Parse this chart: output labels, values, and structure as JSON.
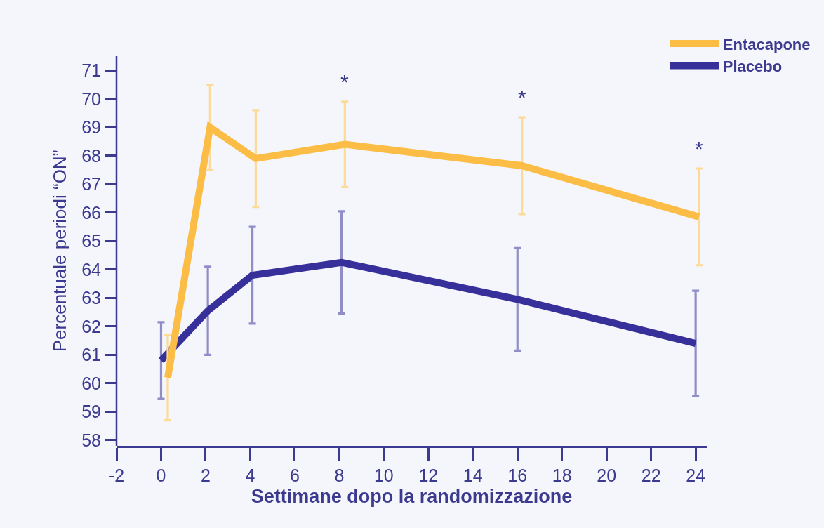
{
  "chart_data": {
    "type": "line",
    "xlabel": "Settimane dopo la randomizzazione",
    "ylabel": "Percentuale periodi “ON”",
    "xlim": [
      -2,
      24.5
    ],
    "xticks": [
      -2,
      0,
      2,
      4,
      6,
      8,
      10,
      12,
      14,
      16,
      18,
      20,
      22,
      24
    ],
    "ylim": [
      57.8,
      71.5
    ],
    "yticks": [
      58,
      59,
      60,
      61,
      62,
      63,
      64,
      65,
      66,
      67,
      68,
      69,
      70,
      71
    ],
    "series": [
      {
        "name": "Entacapone",
        "color": "#fbbd45",
        "x": [
          0.3,
          2.2,
          4.25,
          8.25,
          16.2,
          24.15
        ],
        "values": [
          60.2,
          69.0,
          67.9,
          68.4,
          67.65,
          65.85
        ],
        "errors": [
          1.5,
          1.5,
          1.7,
          1.5,
          1.7,
          1.7
        ]
      },
      {
        "name": "Placebo",
        "color": "#37309a",
        "x": [
          0,
          2.1,
          4.1,
          8.1,
          16,
          24
        ],
        "values": [
          60.8,
          62.55,
          63.8,
          64.25,
          62.95,
          61.4
        ],
        "errors": [
          1.35,
          1.55,
          1.7,
          1.8,
          1.8,
          1.85
        ]
      }
    ],
    "annotations": [
      {
        "text": "*",
        "x": 8.25,
        "y": 68.4
      },
      {
        "text": "*",
        "x": 16.2,
        "y": 67.65
      },
      {
        "text": "*",
        "x": 24.15,
        "y": 65.85
      }
    ],
    "legend": "top right",
    "line_style": "solid"
  }
}
